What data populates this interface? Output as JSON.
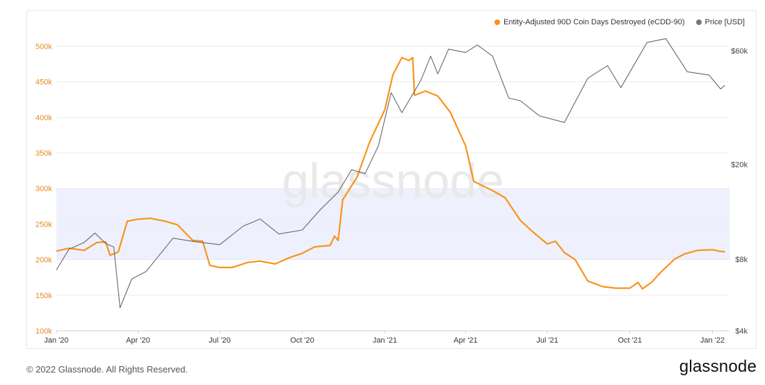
{
  "chart_data": {
    "type": "line",
    "series": [
      {
        "name": "Entity-Adjusted 90D Coin Days Destroyed (eCDD-90)",
        "color": "#f7931a",
        "axis": "left",
        "points": [
          [
            "2020-01-01",
            212000
          ],
          [
            "2020-01-15",
            216000
          ],
          [
            "2020-02-01",
            213000
          ],
          [
            "2020-02-15",
            224000
          ],
          [
            "2020-02-25",
            225000
          ],
          [
            "2020-03-01",
            206000
          ],
          [
            "2020-03-10",
            211000
          ],
          [
            "2020-03-20",
            254000
          ],
          [
            "2020-04-01",
            257000
          ],
          [
            "2020-04-15",
            258000
          ],
          [
            "2020-05-01",
            254000
          ],
          [
            "2020-05-15",
            249000
          ],
          [
            "2020-06-01",
            227000
          ],
          [
            "2020-06-12",
            226000
          ],
          [
            "2020-06-20",
            192000
          ],
          [
            "2020-07-01",
            189000
          ],
          [
            "2020-07-15",
            189000
          ],
          [
            "2020-08-01",
            196000
          ],
          [
            "2020-08-15",
            198000
          ],
          [
            "2020-09-01",
            194000
          ],
          [
            "2020-09-15",
            202000
          ],
          [
            "2020-10-01",
            209000
          ],
          [
            "2020-10-15",
            218000
          ],
          [
            "2020-11-01",
            220000
          ],
          [
            "2020-11-06",
            233000
          ],
          [
            "2020-11-10",
            227000
          ],
          [
            "2020-11-15",
            284000
          ],
          [
            "2020-12-01",
            316000
          ],
          [
            "2020-12-15",
            365000
          ],
          [
            "2021-01-01",
            411000
          ],
          [
            "2021-01-10",
            460000
          ],
          [
            "2021-01-20",
            484000
          ],
          [
            "2021-01-28",
            480000
          ],
          [
            "2021-02-01",
            484000
          ],
          [
            "2021-02-03",
            431000
          ],
          [
            "2021-02-15",
            437000
          ],
          [
            "2021-03-01",
            430000
          ],
          [
            "2021-03-15",
            407000
          ],
          [
            "2021-04-01",
            360000
          ],
          [
            "2021-04-10",
            310000
          ],
          [
            "2021-05-01",
            297000
          ],
          [
            "2021-05-15",
            287000
          ],
          [
            "2021-06-01",
            255000
          ],
          [
            "2021-06-15",
            239000
          ],
          [
            "2021-07-01",
            222000
          ],
          [
            "2021-07-10",
            226000
          ],
          [
            "2021-07-20",
            210000
          ],
          [
            "2021-08-01",
            200000
          ],
          [
            "2021-08-15",
            170000
          ],
          [
            "2021-09-01",
            162000
          ],
          [
            "2021-09-15",
            160000
          ],
          [
            "2021-10-01",
            160000
          ],
          [
            "2021-10-10",
            168000
          ],
          [
            "2021-10-15",
            159000
          ],
          [
            "2021-10-25",
            168000
          ],
          [
            "2021-11-05",
            183000
          ],
          [
            "2021-11-20",
            201000
          ],
          [
            "2021-12-01",
            208000
          ],
          [
            "2021-12-15",
            213000
          ],
          [
            "2022-01-01",
            214000
          ],
          [
            "2022-01-08",
            212000
          ],
          [
            "2022-01-15",
            211000
          ]
        ]
      },
      {
        "name": "Price [USD]",
        "color": "#666666",
        "axis": "right",
        "points": [
          [
            "2020-01-01",
            7200
          ],
          [
            "2020-01-15",
            8800
          ],
          [
            "2020-02-01",
            9400
          ],
          [
            "2020-02-13",
            10300
          ],
          [
            "2020-02-25",
            9300
          ],
          [
            "2020-03-05",
            9000
          ],
          [
            "2020-03-12",
            5000
          ],
          [
            "2020-03-25",
            6600
          ],
          [
            "2020-04-10",
            7100
          ],
          [
            "2020-04-30",
            8800
          ],
          [
            "2020-05-10",
            9800
          ],
          [
            "2020-06-01",
            9500
          ],
          [
            "2020-07-01",
            9200
          ],
          [
            "2020-07-27",
            11000
          ],
          [
            "2020-08-15",
            11800
          ],
          [
            "2020-09-05",
            10200
          ],
          [
            "2020-10-01",
            10600
          ],
          [
            "2020-10-21",
            12900
          ],
          [
            "2020-11-10",
            15300
          ],
          [
            "2020-11-25",
            19000
          ],
          [
            "2020-12-10",
            18300
          ],
          [
            "2020-12-25",
            24000
          ],
          [
            "2021-01-08",
            40000
          ],
          [
            "2021-01-20",
            33000
          ],
          [
            "2021-02-10",
            45000
          ],
          [
            "2021-02-21",
            57000
          ],
          [
            "2021-03-01",
            48000
          ],
          [
            "2021-03-13",
            61000
          ],
          [
            "2021-04-01",
            59000
          ],
          [
            "2021-04-14",
            63500
          ],
          [
            "2021-05-01",
            57000
          ],
          [
            "2021-05-19",
            38000
          ],
          [
            "2021-06-01",
            37000
          ],
          [
            "2021-06-22",
            32000
          ],
          [
            "2021-07-20",
            30000
          ],
          [
            "2021-08-15",
            46000
          ],
          [
            "2021-09-06",
            52000
          ],
          [
            "2021-09-21",
            42000
          ],
          [
            "2021-10-20",
            65000
          ],
          [
            "2021-11-10",
            67500
          ],
          [
            "2021-12-04",
            49000
          ],
          [
            "2021-12-28",
            47500
          ],
          [
            "2022-01-10",
            41500
          ],
          [
            "2022-01-15",
            43000
          ]
        ]
      }
    ],
    "x_ticks": [
      [
        "2020-01-01",
        "Jan '20"
      ],
      [
        "2020-04-01",
        "Apr '20"
      ],
      [
        "2020-07-01",
        "Jul '20"
      ],
      [
        "2020-10-01",
        "Oct '20"
      ],
      [
        "2021-01-01",
        "Jan '21"
      ],
      [
        "2021-04-01",
        "Apr '21"
      ],
      [
        "2021-07-01",
        "Jul '21"
      ],
      [
        "2021-10-01",
        "Oct '21"
      ],
      [
        "2022-01-01",
        "Jan '22"
      ]
    ],
    "xlim": [
      "2020-01-01",
      "2022-01-20"
    ],
    "left_axis": {
      "scale": "linear",
      "ylim": [
        100000,
        520000
      ],
      "ticks": [
        100000,
        150000,
        200000,
        250000,
        300000,
        350000,
        400000,
        450000,
        500000
      ],
      "tick_labels": [
        "100k",
        "150k",
        "200k",
        "250k",
        "300k",
        "350k",
        "400k",
        "450k",
        "500k"
      ],
      "color": "#e08a1e"
    },
    "right_axis": {
      "scale": "log",
      "ylim": [
        4000,
        72000
      ],
      "ticks": [
        4000,
        8000,
        20000,
        60000
      ],
      "tick_labels": [
        "$4k",
        "$8k",
        "$20k",
        "$60k"
      ],
      "color": "#444444"
    },
    "band": {
      "from": 200000,
      "to": 300000,
      "color": "#eef0fd"
    },
    "grid": true,
    "legend_placement": "top-right",
    "watermark": "glassnode"
  },
  "legend": {
    "series1_label": "Entity-Adjusted 90D Coin Days Destroyed (eCDD-90)",
    "series2_label": "Price [USD]"
  },
  "footer": {
    "copyright": "© 2022 Glassnode. All Rights Reserved.",
    "brand": "glassnode"
  }
}
